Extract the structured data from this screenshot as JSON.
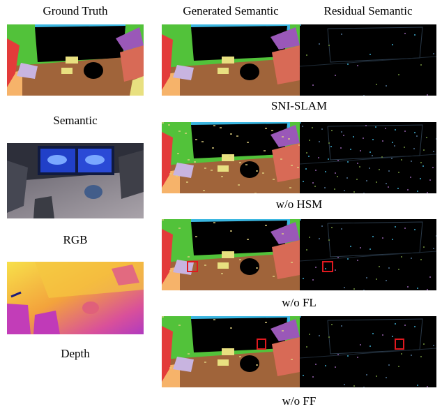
{
  "headers": {
    "ground_truth": "Ground Truth",
    "generated": "Generated Semantic",
    "residual": "Residual Semantic"
  },
  "left_labels": {
    "semantic": "Semantic",
    "rgb": "RGB",
    "depth": "Depth"
  },
  "row_captions": [
    "SNI-SLAM",
    "w/o HSM",
    "w/o FL",
    "w/o FF"
  ],
  "colors": {
    "wall_green": "#52c23a",
    "window_blue": "#3bb6e0",
    "floor_brown": "#a0643a",
    "table_orange": "#f6b36a",
    "plant_purple": "#9a58b8",
    "red_chair": "#e33b3a",
    "highlight_box": "#e0191f"
  }
}
